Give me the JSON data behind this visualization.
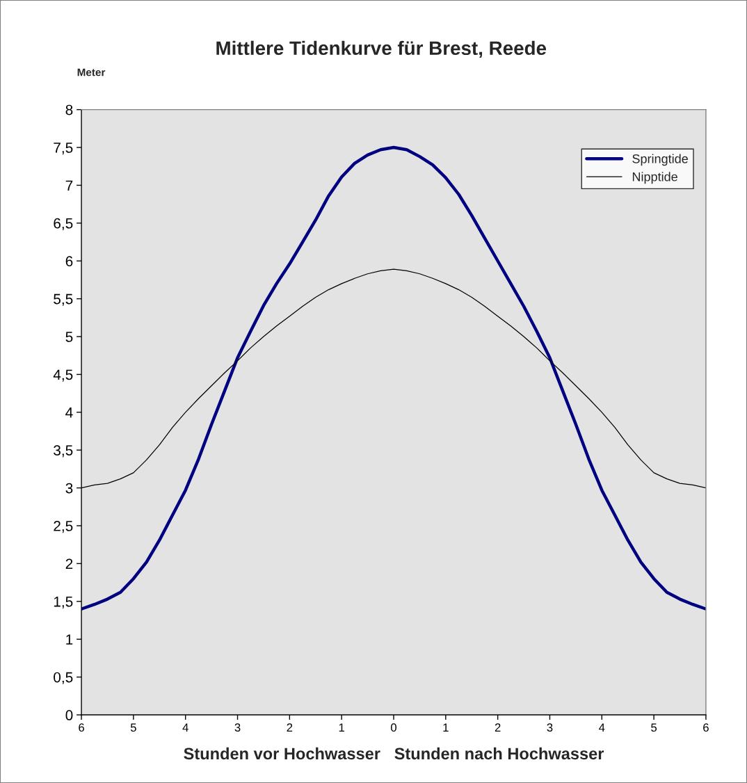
{
  "chart_data": {
    "type": "line",
    "title": "Mittlere Tidenkurve für Brest, Reede",
    "ylabel": "Meter",
    "xlabel": "Stunden vor Hochwasser   Stunden nach Hochwasser",
    "x": [
      -6,
      -5.75,
      -5.5,
      -5.25,
      -5,
      -4.75,
      -4.5,
      -4.25,
      -4,
      -3.75,
      -3.5,
      -3.25,
      -3,
      -2.75,
      -2.5,
      -2.25,
      -2,
      -1.75,
      -1.5,
      -1.25,
      -1,
      -0.75,
      -0.5,
      -0.25,
      0,
      0.25,
      0.5,
      0.75,
      1,
      1.25,
      1.5,
      1.75,
      2,
      2.25,
      2.5,
      2.75,
      3,
      3.25,
      3.5,
      3.75,
      4,
      4.25,
      4.5,
      4.75,
      5,
      5.25,
      5.5,
      5.75,
      6
    ],
    "series": [
      {
        "name": "Springtide",
        "color": "#000080",
        "values": [
          1.4,
          1.46,
          1.53,
          1.62,
          1.8,
          2.02,
          2.31,
          2.64,
          2.97,
          3.38,
          3.84,
          4.28,
          4.72,
          5.07,
          5.41,
          5.7,
          5.96,
          6.25,
          6.54,
          6.86,
          7.11,
          7.29,
          7.4,
          7.47,
          7.5,
          7.47,
          7.38,
          7.27,
          7.1,
          6.88,
          6.6,
          6.3,
          6.0,
          5.7,
          5.4,
          5.07,
          4.72,
          4.28,
          3.84,
          3.38,
          2.97,
          2.64,
          2.31,
          2.02,
          1.8,
          1.62,
          1.53,
          1.46,
          1.4
        ]
      },
      {
        "name": "Nipptide",
        "color": "#000000",
        "values": [
          3.0,
          3.04,
          3.06,
          3.12,
          3.2,
          3.37,
          3.57,
          3.8,
          4.0,
          4.18,
          4.35,
          4.52,
          4.68,
          4.85,
          5.0,
          5.14,
          5.27,
          5.4,
          5.52,
          5.62,
          5.7,
          5.77,
          5.83,
          5.87,
          5.89,
          5.87,
          5.83,
          5.77,
          5.7,
          5.62,
          5.52,
          5.4,
          5.27,
          5.14,
          5.0,
          4.85,
          4.68,
          4.52,
          4.35,
          4.18,
          4.0,
          3.8,
          3.57,
          3.37,
          3.2,
          3.12,
          3.06,
          3.04,
          3.0
        ]
      }
    ],
    "xlim": [
      -6,
      6
    ],
    "ylim": [
      0,
      8
    ],
    "xticks": [
      {
        "value": -6,
        "label": "6"
      },
      {
        "value": -5,
        "label": "5"
      },
      {
        "value": -4,
        "label": "4"
      },
      {
        "value": -3,
        "label": "3"
      },
      {
        "value": -2,
        "label": "2"
      },
      {
        "value": -1,
        "label": "1"
      },
      0,
      1,
      2,
      3,
      4,
      5,
      6
    ],
    "yticks": [
      0,
      {
        "value": 0.5,
        "label": "0,5"
      },
      1,
      {
        "value": 1.5,
        "label": "1,5"
      },
      2,
      {
        "value": 2.5,
        "label": "2,5"
      },
      3,
      {
        "value": 3.5,
        "label": "3,5"
      },
      4,
      {
        "value": 4.5,
        "label": "4,5"
      },
      5,
      {
        "value": 5.5,
        "label": "5,5"
      },
      6,
      {
        "value": 6.5,
        "label": "6,5"
      },
      7,
      {
        "value": 7.5,
        "label": "7,5"
      },
      8
    ],
    "grid": false,
    "legend": "top right",
    "marker": "none",
    "line_style": "solid"
  }
}
